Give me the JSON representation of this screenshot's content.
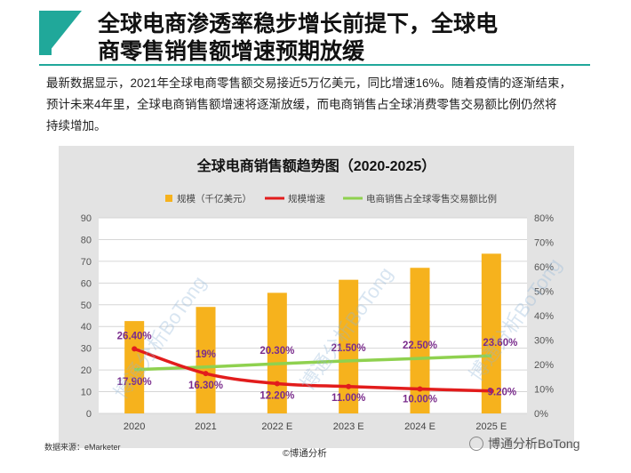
{
  "header": {
    "title_line1": "全球电商渗透率稳步增长前提下，全球电",
    "title_line2": "商零售销售额增速预期放缓"
  },
  "intro": {
    "line1": "最新数据显示，2021年全球电商零售额交易接近5万亿美元，同比增速16%。随着疫情的逐渐结束，",
    "line2": "预计未来4年里，全球电商销售额增速将逐渐放缓，而电商销售占全球消费零售交易额比例仍然将",
    "line3": "持续增加。"
  },
  "footer": {
    "source": "数据来源：eMarketer",
    "copyright": "©博通分析",
    "wechat": "博通分析BoTong"
  },
  "watermark": "博通分析BoTong",
  "colors": {
    "accent": "#20a89a",
    "bar": "#f6b21d",
    "growth": "#e21c1c",
    "share": "#8fd14f",
    "label_purple": "#7a2c8c"
  },
  "chart_data": {
    "type": "bar",
    "title": "全球电商销售额趋势图（2020-2025）",
    "categories": [
      "2020",
      "2021",
      "2022 E",
      "2023 E",
      "2024 E",
      "2025 E"
    ],
    "series": [
      {
        "name": "规模（千亿美元）",
        "type": "bar",
        "axis": "left",
        "values": [
          42.5,
          49,
          55.5,
          61.5,
          67,
          73.5
        ]
      },
      {
        "name": "规模增速",
        "type": "line",
        "axis": "right",
        "values": [
          26.4,
          16.3,
          12.2,
          11.0,
          10.0,
          9.2
        ],
        "labels": [
          "26.40%",
          "16.30%",
          "12.20%",
          "11.00%",
          "10.00%",
          "9.20%"
        ]
      },
      {
        "name": "电商销售占全球零售交易额比例",
        "type": "line",
        "axis": "right",
        "values": [
          17.9,
          19,
          20.3,
          21.5,
          22.5,
          23.6
        ],
        "labels": [
          "17.90%",
          "19%",
          "20.30%",
          "21.50%",
          "22.50%",
          "23.60%"
        ]
      }
    ],
    "y_left": {
      "min": 0,
      "max": 90,
      "step": 10,
      "ticks": [
        "0",
        "10",
        "20",
        "30",
        "40",
        "50",
        "60",
        "70",
        "80",
        "90"
      ]
    },
    "y_right": {
      "min": 0,
      "max": 80,
      "step": 10,
      "ticks": [
        "0%",
        "10%",
        "20%",
        "30%",
        "40%",
        "50%",
        "60%",
        "70%",
        "80%"
      ]
    },
    "grid": true,
    "legend_position": "top"
  }
}
